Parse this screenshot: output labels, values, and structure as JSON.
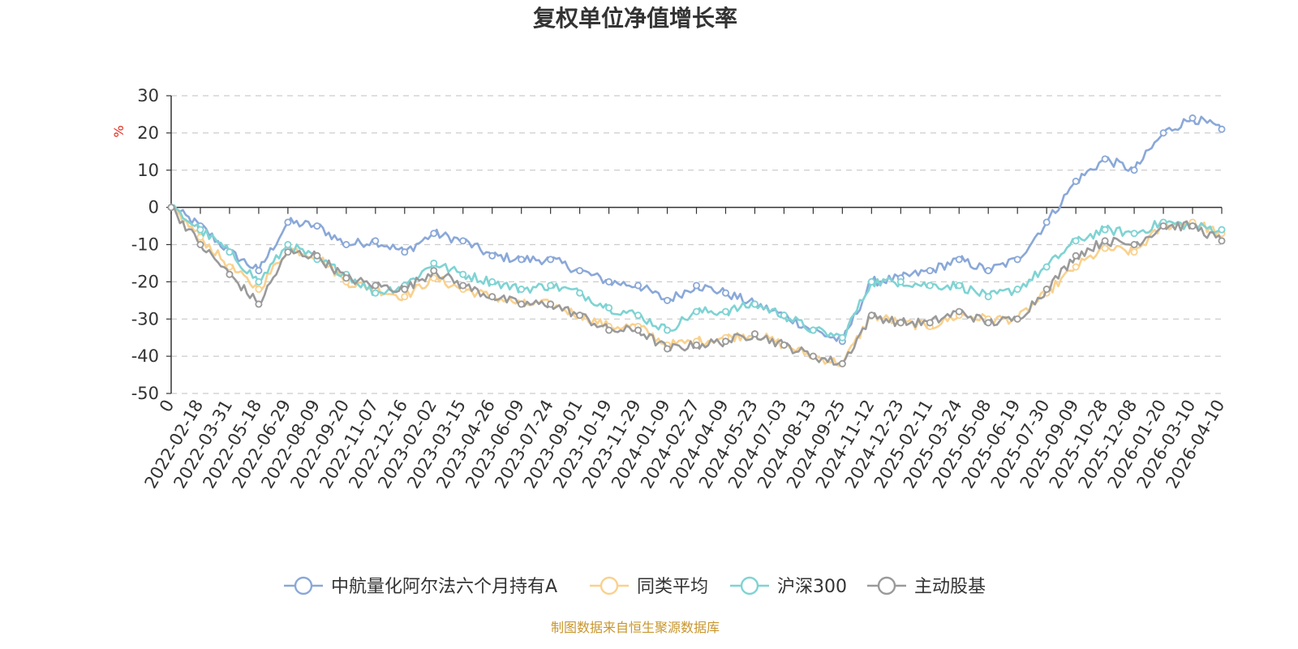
{
  "chart_data": {
    "type": "line",
    "title": "复权单位净值增长率",
    "ylabel": "%",
    "xlabel": "",
    "ylim": [
      -50,
      30
    ],
    "yticks": [
      30,
      20,
      10,
      0,
      -10,
      -20,
      -30,
      -40,
      -50
    ],
    "grid": true,
    "legend_position": "bottom-center",
    "source_note": "制图数据来自恒生聚源数据库",
    "x": [
      "0",
      "2022-02-18",
      "2022-03-31",
      "2022-05-18",
      "2022-06-29",
      "2022-08-09",
      "2022-09-20",
      "2022-11-07",
      "2022-12-16",
      "2023-02-02",
      "2023-03-15",
      "2023-04-26",
      "2023-06-09",
      "2023-07-24",
      "2023-09-01",
      "2023-10-19",
      "2023-11-29",
      "2024-01-09",
      "2024-02-27",
      "2024-04-09",
      "2024-05-23",
      "2024-07-03",
      "2024-08-13",
      "2024-09-25",
      "2024-11-12",
      "2024-12-23",
      "2025-02-11",
      "2025-03-24",
      "2025-05-08",
      "2025-06-19",
      "2025-07-30",
      "2025-09-09",
      "2025-10-28",
      "2025-12-08",
      "2026-01-20",
      "2026-03-10",
      "2026-04-10"
    ],
    "series": [
      {
        "name": "中航量化阿尔法六个月持有A",
        "color": "#8aa8d8",
        "values": [
          0,
          -5,
          -12,
          -17,
          -4,
          -5,
          -10,
          -9,
          -12,
          -7,
          -9,
          -13,
          -14,
          -14,
          -17,
          -20,
          -21,
          -25,
          -21,
          -23,
          -26,
          -29,
          -33,
          -36,
          -20,
          -19,
          -17,
          -14,
          -17,
          -14,
          -4,
          7,
          13,
          10,
          20,
          24,
          21
        ]
      },
      {
        "name": "同类平均",
        "color": "#f9d18e",
        "values": [
          0,
          -8,
          -16,
          -22,
          -11,
          -13,
          -20,
          -22,
          -24,
          -19,
          -22,
          -24,
          -26,
          -26,
          -29,
          -32,
          -32,
          -37,
          -36,
          -35,
          -34,
          -37,
          -40,
          -42,
          -29,
          -31,
          -32,
          -29,
          -30,
          -30,
          -23,
          -16,
          -11,
          -12,
          -5,
          -4,
          -7
        ]
      },
      {
        "name": "沪深300",
        "color": "#7fd3d3",
        "values": [
          0,
          -6,
          -12,
          -20,
          -10,
          -14,
          -18,
          -23,
          -21,
          -15,
          -18,
          -20,
          -22,
          -21,
          -23,
          -27,
          -29,
          -33,
          -28,
          -28,
          -26,
          -29,
          -33,
          -35,
          -20,
          -20,
          -21,
          -21,
          -24,
          -22,
          -16,
          -9,
          -6,
          -7,
          -4,
          -5,
          -6
        ]
      },
      {
        "name": "主动股基",
        "color": "#9a9a9a",
        "values": [
          0,
          -10,
          -18,
          -26,
          -12,
          -13,
          -19,
          -21,
          -22,
          -17,
          -21,
          -24,
          -26,
          -26,
          -29,
          -33,
          -33,
          -38,
          -37,
          -36,
          -34,
          -37,
          -40,
          -42,
          -29,
          -31,
          -31,
          -28,
          -31,
          -30,
          -22,
          -13,
          -9,
          -10,
          -5,
          -5,
          -9
        ]
      }
    ]
  }
}
